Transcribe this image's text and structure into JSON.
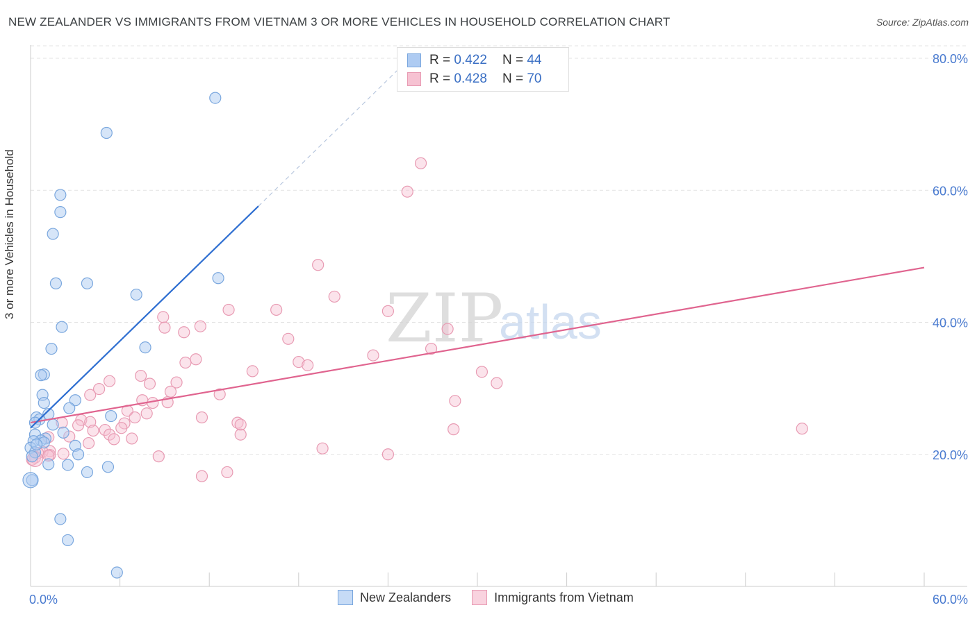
{
  "title": "NEW ZEALANDER VS IMMIGRANTS FROM VIETNAM 3 OR MORE VEHICLES IN HOUSEHOLD CORRELATION CHART",
  "source": "Source: ZipAtlas.com",
  "watermark": {
    "zip": "ZIP",
    "atlas": "atlas"
  },
  "colors": {
    "blue_fill": "#aecbf2",
    "blue_stroke": "#7aa7de",
    "blue_line": "#2f6fd1",
    "pink_fill": "#f6c2d2",
    "pink_stroke": "#e89bb3",
    "pink_line": "#e0648f",
    "tick_blue": "#4a7bd0",
    "grid": "#e3e3e3"
  },
  "legend_top": [
    {
      "r_label": "R = ",
      "r_value": "0.422",
      "n_label": "N = ",
      "n_value": "44",
      "series": "blue"
    },
    {
      "r_label": "R = ",
      "r_value": "0.428",
      "n_label": "N = ",
      "n_value": "70",
      "series": "pink"
    }
  ],
  "legend_bottom": [
    {
      "label": "New Zealanders",
      "series": "blue"
    },
    {
      "label": "Immigrants from Vietnam",
      "series": "pink"
    }
  ],
  "chart_data": {
    "type": "scatter",
    "title": "NEW ZEALANDER VS IMMIGRANTS FROM VIETNAM 3 OR MORE VEHICLES IN HOUSEHOLD CORRELATION CHART",
    "xlabel": "",
    "ylabel": "3 or more Vehicles in Household",
    "xlim": [
      0,
      60
    ],
    "ylim": [
      0,
      82
    ],
    "x_tick_labels": [
      {
        "value": 0,
        "label": "0.0%"
      },
      {
        "value": 60,
        "label": "60.0%"
      }
    ],
    "y_tick_labels": [
      {
        "value": 20,
        "label": "20.0%"
      },
      {
        "value": 40,
        "label": "40.0%"
      },
      {
        "value": 60,
        "label": "60.0%"
      },
      {
        "value": 80,
        "label": "80.0%"
      }
    ],
    "x_minor_ticks": [
      0,
      6,
      12,
      18,
      24,
      30,
      36,
      42,
      48,
      54,
      60
    ],
    "grid": true,
    "series": [
      {
        "name": "New Zealanders",
        "color": "blue",
        "points": [
          [
            12.4,
            74.0
          ],
          [
            5.1,
            68.7
          ],
          [
            2.0,
            59.3
          ],
          [
            2.0,
            56.7
          ],
          [
            1.5,
            53.4
          ],
          [
            12.6,
            46.7
          ],
          [
            1.7,
            45.9
          ],
          [
            3.8,
            45.9
          ],
          [
            7.1,
            44.2
          ],
          [
            2.1,
            39.3
          ],
          [
            7.7,
            36.2
          ],
          [
            1.4,
            36.0
          ],
          [
            0.9,
            32.1
          ],
          [
            0.7,
            32.0
          ],
          [
            0.8,
            29.0
          ],
          [
            3.0,
            28.2
          ],
          [
            0.9,
            27.8
          ],
          [
            2.6,
            27.0
          ],
          [
            1.2,
            26.1
          ],
          [
            0.4,
            25.6
          ],
          [
            5.4,
            25.8
          ],
          [
            0.6,
            25.3
          ],
          [
            0.3,
            24.8
          ],
          [
            1.5,
            24.5
          ],
          [
            2.2,
            23.3
          ],
          [
            0.3,
            23.0
          ],
          [
            1.0,
            22.4
          ],
          [
            0.7,
            22.1
          ],
          [
            0.2,
            22.0
          ],
          [
            0.9,
            21.8
          ],
          [
            3.0,
            21.3
          ],
          [
            0.0,
            21.0
          ],
          [
            0.3,
            20.3
          ],
          [
            3.2,
            20.0
          ],
          [
            0.1,
            19.7
          ],
          [
            1.2,
            18.5
          ],
          [
            2.5,
            18.4
          ],
          [
            5.2,
            18.1
          ],
          [
            3.8,
            17.3
          ],
          [
            0.1,
            16.1
          ],
          [
            2.0,
            10.2
          ],
          [
            2.5,
            7.0
          ],
          [
            5.8,
            2.1
          ],
          [
            0.4,
            21.5
          ]
        ],
        "trend": {
          "x": [
            0,
            15.3
          ],
          "y": [
            24.0,
            57.6
          ]
        },
        "trend_extension": {
          "x": [
            15.3,
            25.0
          ],
          "y": [
            57.6,
            79.0
          ]
        }
      },
      {
        "name": "Immigrants from Vietnam",
        "color": "pink",
        "points": [
          [
            26.2,
            64.1
          ],
          [
            25.3,
            59.8
          ],
          [
            19.3,
            48.7
          ],
          [
            20.4,
            43.9
          ],
          [
            13.3,
            41.9
          ],
          [
            16.5,
            41.9
          ],
          [
            24.0,
            41.7
          ],
          [
            8.9,
            40.8
          ],
          [
            11.4,
            39.4
          ],
          [
            9.0,
            39.2
          ],
          [
            28.0,
            39.0
          ],
          [
            10.3,
            38.5
          ],
          [
            17.3,
            37.5
          ],
          [
            26.9,
            36.0
          ],
          [
            23.0,
            35.0
          ],
          [
            11.1,
            34.4
          ],
          [
            10.4,
            33.9
          ],
          [
            18.0,
            34.0
          ],
          [
            18.6,
            33.5
          ],
          [
            14.9,
            32.6
          ],
          [
            30.3,
            32.5
          ],
          [
            7.4,
            31.9
          ],
          [
            5.3,
            31.1
          ],
          [
            8.0,
            30.7
          ],
          [
            9.8,
            30.9
          ],
          [
            31.3,
            30.8
          ],
          [
            4.6,
            29.9
          ],
          [
            9.4,
            29.5
          ],
          [
            12.7,
            29.1
          ],
          [
            4.0,
            29.0
          ],
          [
            28.5,
            28.1
          ],
          [
            7.5,
            28.2
          ],
          [
            9.2,
            27.9
          ],
          [
            8.2,
            27.8
          ],
          [
            6.5,
            26.6
          ],
          [
            7.8,
            26.2
          ],
          [
            7.0,
            25.6
          ],
          [
            11.5,
            25.6
          ],
          [
            3.4,
            25.2
          ],
          [
            4.0,
            24.9
          ],
          [
            2.1,
            24.8
          ],
          [
            3.2,
            24.4
          ],
          [
            6.3,
            24.7
          ],
          [
            13.9,
            24.8
          ],
          [
            14.1,
            24.5
          ],
          [
            6.1,
            24.0
          ],
          [
            51.8,
            23.9
          ],
          [
            28.4,
            23.8
          ],
          [
            4.2,
            23.6
          ],
          [
            5.0,
            23.7
          ],
          [
            5.3,
            23.0
          ],
          [
            14.1,
            23.0
          ],
          [
            2.6,
            22.7
          ],
          [
            1.2,
            22.6
          ],
          [
            6.8,
            22.4
          ],
          [
            5.6,
            22.3
          ],
          [
            3.9,
            21.7
          ],
          [
            19.6,
            20.9
          ],
          [
            1.3,
            20.5
          ],
          [
            0.8,
            20.4
          ],
          [
            0.5,
            20.2
          ],
          [
            24.0,
            20.0
          ],
          [
            1.3,
            19.9
          ],
          [
            0.3,
            19.5
          ],
          [
            1.2,
            19.8
          ],
          [
            8.6,
            19.7
          ],
          [
            0.1,
            19.2
          ],
          [
            2.2,
            20.1
          ],
          [
            13.2,
            17.3
          ],
          [
            11.5,
            16.7
          ]
        ],
        "trend": {
          "x": [
            0,
            60
          ],
          "y": [
            24.8,
            48.3
          ]
        }
      }
    ]
  }
}
